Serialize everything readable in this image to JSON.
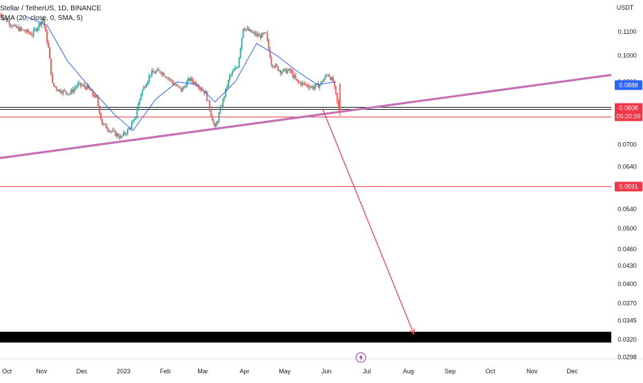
{
  "header": {
    "symbol_line": "Stellar / TetherUS, 1D, BINANCE",
    "indicator_line": "SMA (20, close, 0, SMA, 5)"
  },
  "price_axis": {
    "currency_label": "USDT"
  },
  "badges": {
    "upper": {
      "price": "0.0888",
      "color": "#2962ff"
    },
    "current": {
      "price": "0.0808",
      "countdown": "05:20:59",
      "color": "#f23645"
    },
    "lower": {
      "price": "0.0591",
      "color": "#f23645"
    }
  },
  "icons": {
    "time_axis_icon": "lightning-icon"
  },
  "colors": {
    "candle_up": "#26a69a",
    "candle_down": "#ef5350",
    "sma": "#2962ff",
    "trendline": "#f06292",
    "horizontal_lines": "#f23645",
    "projection_arrow": "#f23645"
  },
  "chart_data": {
    "type": "candlestick",
    "title": "Stellar / TetherUS, 1D, BINANCE",
    "ylabel": "USDT",
    "y_scale": "log",
    "ylim": [
      0.0296,
      0.125
    ],
    "y_ticks": [
      "0.1100",
      "0.1000",
      "0.0900",
      "0.0808",
      "0.0700",
      "0.0640",
      "0.0591",
      "0.0540",
      "0.0500",
      "0.0460",
      "0.0430",
      "0.0400",
      "0.0370",
      "0.0345",
      "0.0320",
      "0.0298"
    ],
    "x_ticks": [
      "Oct",
      "Nov",
      "Dec",
      "2023",
      "Feb",
      "Mar",
      "Apr",
      "May",
      "Jun",
      "Jul",
      "Aug",
      "Sep",
      "Oct",
      "Nov",
      "Dec"
    ],
    "x_tick_dates": [
      "2022-10-01",
      "2022-11-01",
      "2022-12-01",
      "2023-01-01",
      "2023-02-01",
      "2023-03-01",
      "2023-04-01",
      "2023-05-01",
      "2023-06-01",
      "2023-07-01",
      "2023-08-01",
      "2023-09-01",
      "2023-10-01",
      "2023-11-01",
      "2023-12-01"
    ],
    "x_range": [
      "2022-10-01",
      "2023-12-30"
    ],
    "price_path": [
      [
        "2022-10-01",
        0.118
      ],
      [
        "2022-10-12",
        0.112
      ],
      [
        "2022-10-25",
        0.109
      ],
      [
        "2022-11-02",
        0.116
      ],
      [
        "2022-11-06",
        0.103
      ],
      [
        "2022-11-09",
        0.089
      ],
      [
        "2022-11-14",
        0.087
      ],
      [
        "2022-11-22",
        0.086
      ],
      [
        "2022-11-28",
        0.089
      ],
      [
        "2022-12-05",
        0.088
      ],
      [
        "2022-12-12",
        0.084
      ],
      [
        "2022-12-16",
        0.076
      ],
      [
        "2022-12-24",
        0.0735
      ],
      [
        "2022-12-30",
        0.072
      ],
      [
        "2023-01-04",
        0.074
      ],
      [
        "2023-01-09",
        0.077
      ],
      [
        "2023-01-14",
        0.086
      ],
      [
        "2023-01-21",
        0.093
      ],
      [
        "2023-01-28",
        0.094
      ],
      [
        "2023-02-02",
        0.092
      ],
      [
        "2023-02-08",
        0.089
      ],
      [
        "2023-02-13",
        0.087
      ],
      [
        "2023-02-19",
        0.091
      ],
      [
        "2023-02-25",
        0.089
      ],
      [
        "2023-03-03",
        0.086
      ],
      [
        "2023-03-10",
        0.0745
      ],
      [
        "2023-03-15",
        0.082
      ],
      [
        "2023-03-21",
        0.092
      ],
      [
        "2023-03-27",
        0.096
      ],
      [
        "2023-03-31",
        0.112
      ],
      [
        "2023-04-05",
        0.11
      ],
      [
        "2023-04-12",
        0.108
      ],
      [
        "2023-04-17",
        0.109
      ],
      [
        "2023-04-21",
        0.097
      ],
      [
        "2023-04-28",
        0.094
      ],
      [
        "2023-05-05",
        0.094
      ],
      [
        "2023-05-10",
        0.09
      ],
      [
        "2023-05-16",
        0.089
      ],
      [
        "2023-05-22",
        0.088
      ],
      [
        "2023-05-27",
        0.089
      ],
      [
        "2023-06-02",
        0.093
      ],
      [
        "2023-06-06",
        0.09
      ],
      [
        "2023-06-10",
        0.0808
      ]
    ],
    "series": [
      {
        "name": "SMA (20, close, 0, SMA, 5)",
        "type": "line",
        "color": "#2962ff",
        "points": [
          [
            "2022-10-20",
            0.117
          ],
          [
            "2022-11-05",
            0.113
          ],
          [
            "2022-11-20",
            0.098
          ],
          [
            "2022-12-05",
            0.089
          ],
          [
            "2022-12-25",
            0.079
          ],
          [
            "2023-01-08",
            0.074
          ],
          [
            "2023-01-25",
            0.084
          ],
          [
            "2023-02-10",
            0.09
          ],
          [
            "2023-02-25",
            0.089
          ],
          [
            "2023-03-10",
            0.083
          ],
          [
            "2023-03-25",
            0.09
          ],
          [
            "2023-04-10",
            0.105
          ],
          [
            "2023-04-25",
            0.1
          ],
          [
            "2023-05-10",
            0.094
          ],
          [
            "2023-05-25",
            0.089
          ],
          [
            "2023-06-08",
            0.09
          ]
        ]
      }
    ],
    "drawings": {
      "ascending_trendline": {
        "points": [
          [
            "2022-12-28",
            0.0707
          ],
          [
            "2023-06-06",
            0.0795
          ]
        ],
        "extended": true
      },
      "horizontal_lines": [
        0.0808,
        0.0591
      ],
      "projection_arrow": {
        "from": [
          "2023-05-29",
          0.0808
        ],
        "to": [
          "2023-08-05",
          0.0327
        ]
      },
      "target_zone": [
        0.0316,
        0.033
      ]
    }
  }
}
